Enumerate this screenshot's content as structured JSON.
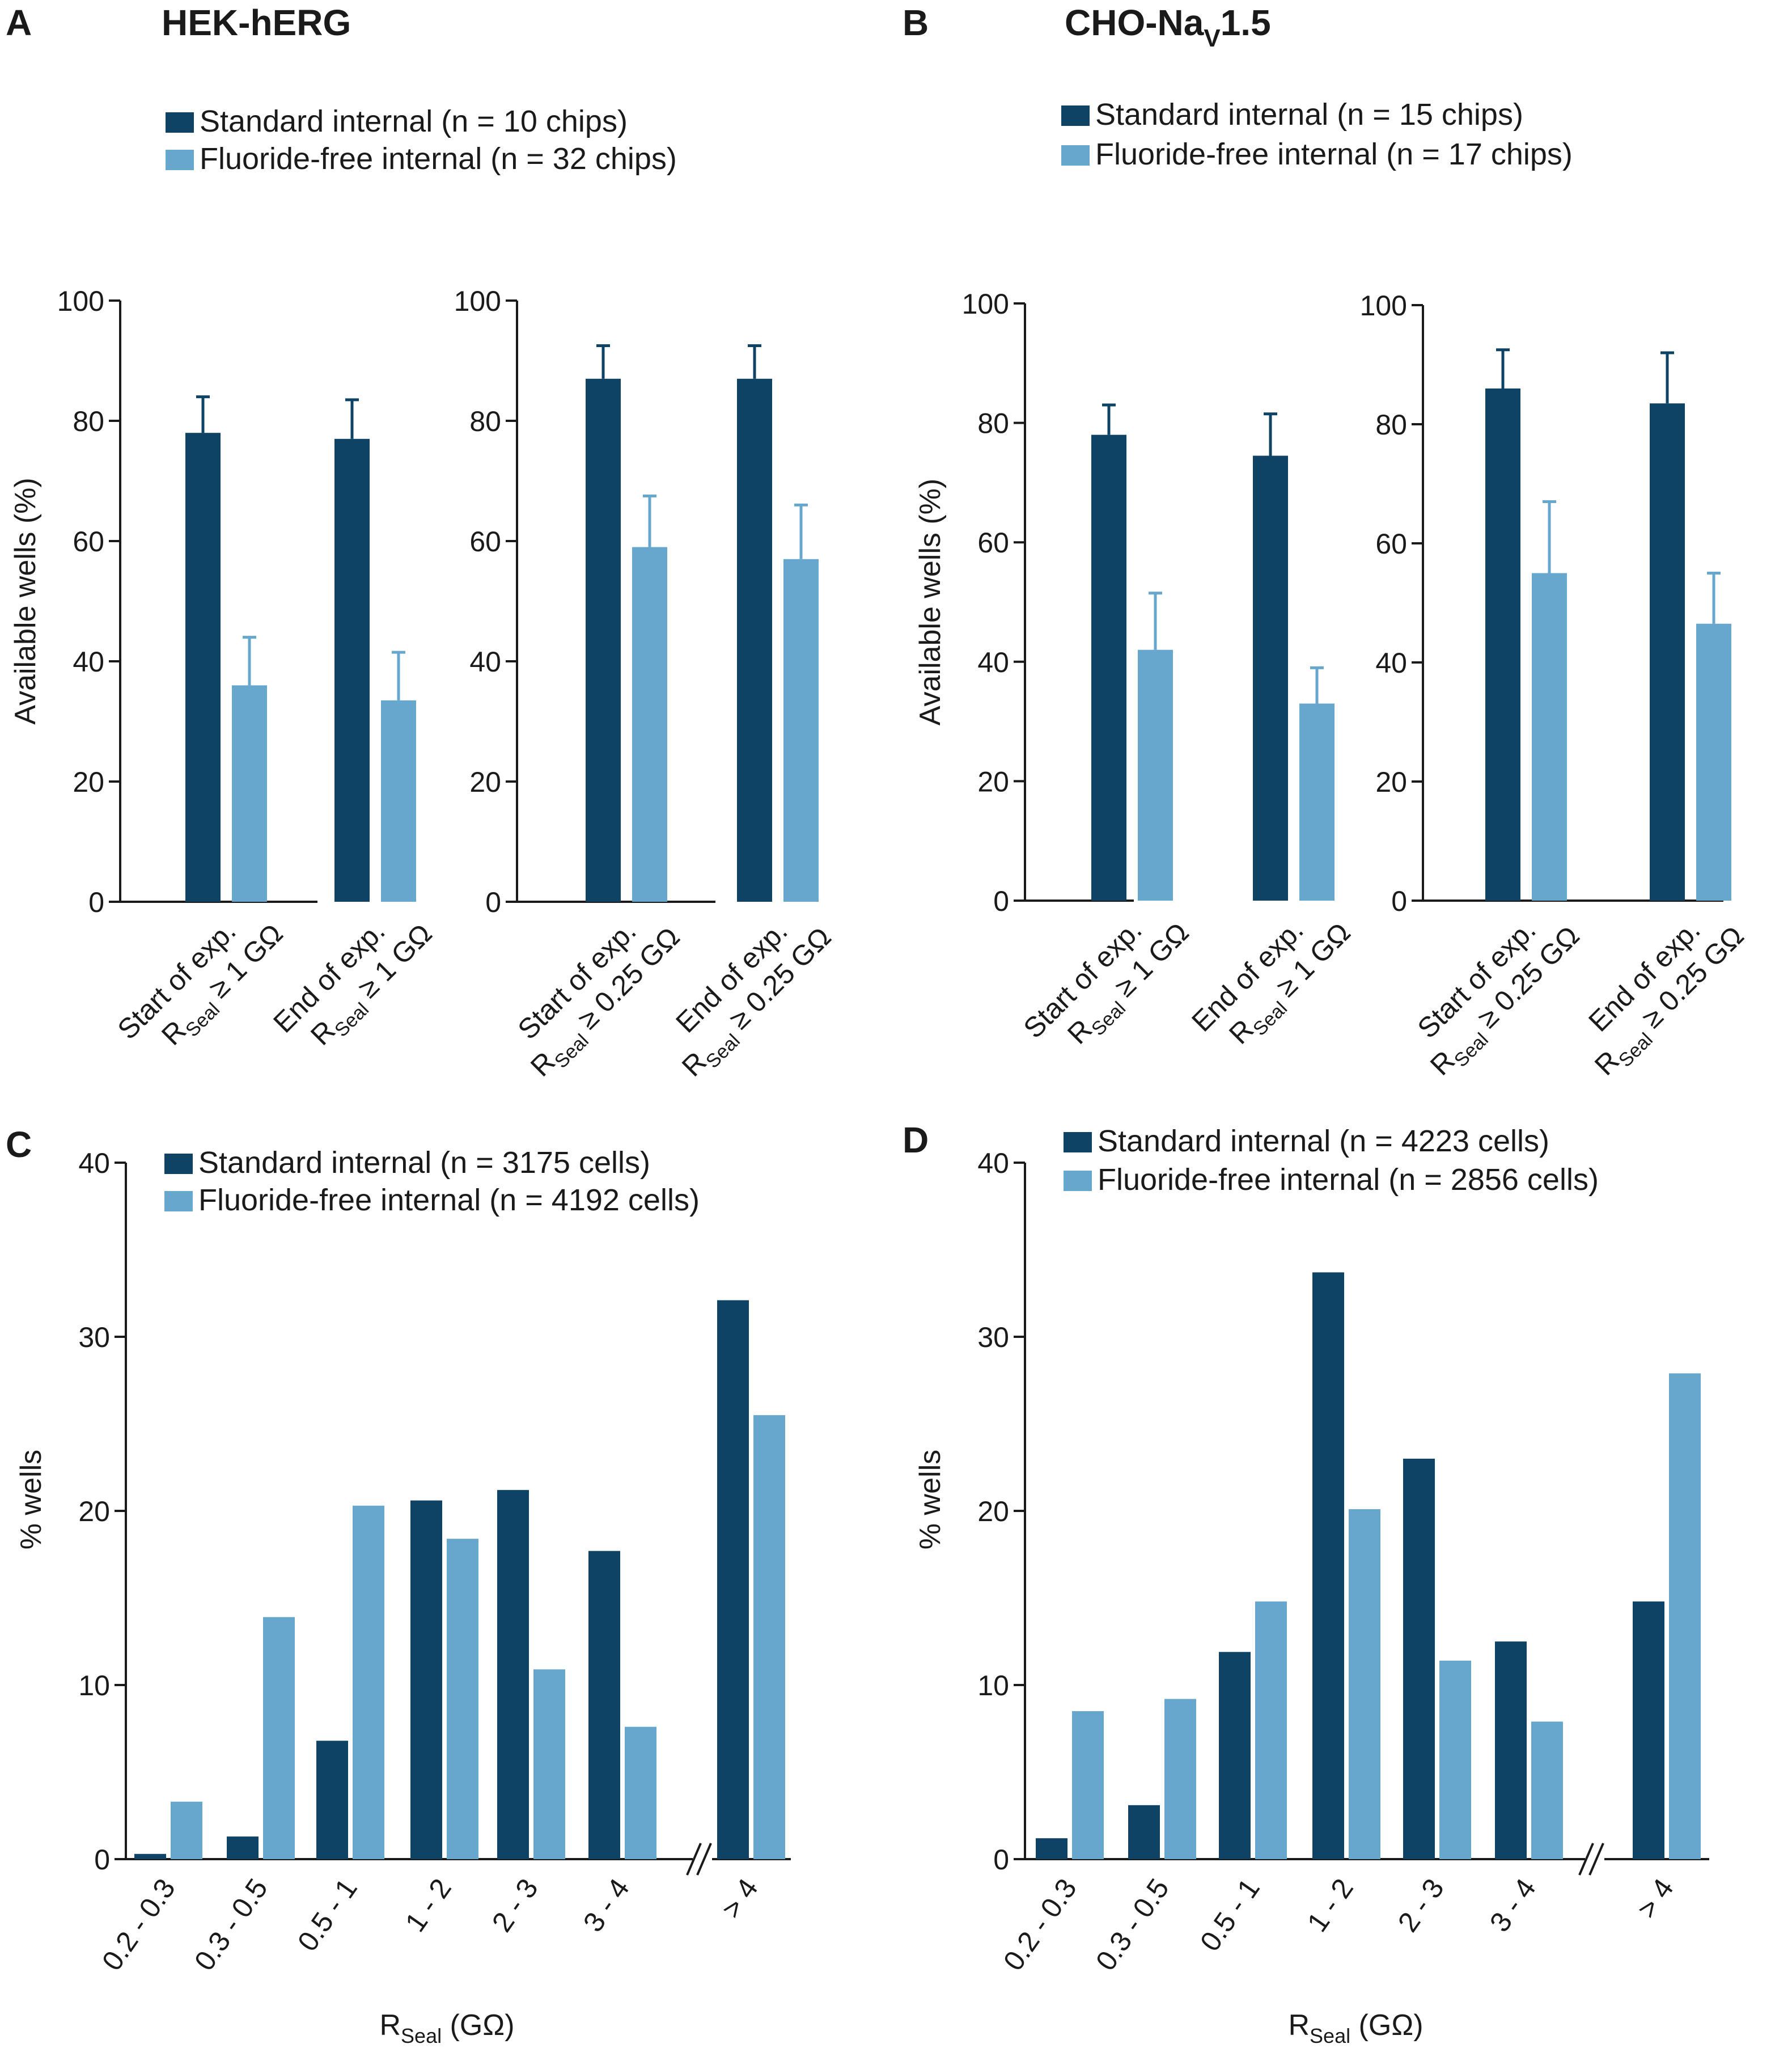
{
  "colors": {
    "standard": "#0e4365",
    "fluoride_free": "#67a6cd",
    "text": "#1a1a1a"
  },
  "panels": {
    "A": {
      "letter": "A",
      "title": "HEK-hERG",
      "legend": [
        "Standard internal (n = 10 chips)",
        "Fluoride-free internal (n = 32 chips)"
      ]
    },
    "B": {
      "letter": "B",
      "title_main": "CHO-Na",
      "title_sub": "V",
      "title_tail": "1.5",
      "legend": [
        "Standard internal (n = 15 chips)",
        "Fluoride-free internal (n = 17 chips)"
      ]
    },
    "C": {
      "letter": "C",
      "legend": [
        "Standard internal (n = 3175 cells)",
        "Fluoride-free internal (n = 4192 cells)"
      ]
    },
    "D": {
      "letter": "D",
      "legend": [
        "Standard internal (n = 4223 cells)",
        "Fluoride-free internal (n = 2856 cells)"
      ]
    }
  },
  "chart_data": [
    {
      "id": "A1",
      "type": "bar",
      "panel": "A",
      "ylabel": "Available wells (%)",
      "ylim": [
        0,
        100
      ],
      "yticks": [
        0,
        20,
        40,
        60,
        80,
        100
      ],
      "categories": [
        {
          "line1": "Start of exp.",
          "line2_r": "R",
          "line2_sub": "Seal",
          "line2_rest": " ≥ 1 GΩ"
        },
        {
          "line1": "End of exp.",
          "line2_r": "R",
          "line2_sub": "Seal",
          "line2_rest": " ≥ 1 GΩ"
        }
      ],
      "series": [
        {
          "name": "Standard internal",
          "values": [
            78,
            77
          ],
          "errors": [
            6,
            6.5
          ]
        },
        {
          "name": "Fluoride-free internal",
          "values": [
            36,
            33.5
          ],
          "errors": [
            8,
            8
          ]
        }
      ]
    },
    {
      "id": "A2",
      "type": "bar",
      "panel": "A",
      "ylabel": "",
      "ylim": [
        0,
        100
      ],
      "yticks": [
        0,
        20,
        40,
        60,
        80,
        100
      ],
      "categories": [
        {
          "line1": "Start of exp.",
          "line2_r": "R",
          "line2_sub": "Seal",
          "line2_rest": " ≥ 0.25 GΩ"
        },
        {
          "line1": "End of exp.",
          "line2_r": "R",
          "line2_sub": "Seal",
          "line2_rest": " ≥ 0.25 GΩ"
        }
      ],
      "series": [
        {
          "name": "Standard internal",
          "values": [
            87,
            87
          ],
          "errors": [
            5.5,
            5.5
          ]
        },
        {
          "name": "Fluoride-free internal",
          "values": [
            59,
            57
          ],
          "errors": [
            8.5,
            9
          ]
        }
      ]
    },
    {
      "id": "B1",
      "type": "bar",
      "panel": "B",
      "ylabel": "Available wells (%)",
      "ylim": [
        0,
        100
      ],
      "yticks": [
        0,
        20,
        40,
        60,
        80,
        100
      ],
      "categories": [
        {
          "line1": "Start of exp.",
          "line2_r": "R",
          "line2_sub": "Seal",
          "line2_rest": " ≥ 1 GΩ"
        },
        {
          "line1": "End of exp.",
          "line2_r": "R",
          "line2_sub": "Seal",
          "line2_rest": " ≥ 1 GΩ"
        }
      ],
      "series": [
        {
          "name": "Standard internal",
          "values": [
            78,
            74.5
          ],
          "errors": [
            5,
            7
          ]
        },
        {
          "name": "Fluoride-free internal",
          "values": [
            42,
            33
          ],
          "errors": [
            9.5,
            6
          ]
        }
      ]
    },
    {
      "id": "B2",
      "type": "bar",
      "panel": "B",
      "ylabel": "",
      "ylim": [
        0,
        100
      ],
      "yticks": [
        0,
        20,
        40,
        60,
        80,
        100
      ],
      "categories": [
        {
          "line1": "Start of exp.",
          "line2_r": "R",
          "line2_sub": "Seal",
          "line2_rest": " ≥ 0.25 GΩ"
        },
        {
          "line1": "End of exp.",
          "line2_r": "R",
          "line2_sub": "Seal",
          "line2_rest": " ≥ 0.25 GΩ"
        }
      ],
      "series": [
        {
          "name": "Standard internal",
          "values": [
            86,
            83.5
          ],
          "errors": [
            6.5,
            8.5
          ]
        },
        {
          "name": "Fluoride-free internal",
          "values": [
            55,
            46.5
          ],
          "errors": [
            12,
            8.5
          ]
        }
      ]
    },
    {
      "id": "C",
      "type": "bar",
      "panel": "C",
      "ylabel": "% wells",
      "xlabel_r": "R",
      "xlabel_sub": "Seal",
      "xlabel_rest": " (GΩ)",
      "ylim": [
        0,
        40
      ],
      "yticks": [
        0,
        10,
        20,
        30,
        40
      ],
      "categories": [
        "0.2 - 0.3",
        "0.3 - 0.5",
        "0.5 - 1",
        "1 - 2",
        "2 - 3",
        "3 - 4",
        "> 4"
      ],
      "axis_break_after": "3 - 4",
      "series": [
        {
          "name": "Standard internal",
          "values": [
            0.3,
            1.3,
            6.8,
            20.6,
            21.2,
            17.7,
            32.1
          ]
        },
        {
          "name": "Fluoride-free internal",
          "values": [
            3.3,
            13.9,
            20.3,
            18.4,
            10.9,
            7.6,
            25.5
          ]
        }
      ]
    },
    {
      "id": "D",
      "type": "bar",
      "panel": "D",
      "ylabel": "% wells",
      "xlabel_r": "R",
      "xlabel_sub": "Seal",
      "xlabel_rest": " (GΩ)",
      "ylim": [
        0,
        40
      ],
      "yticks": [
        0,
        10,
        20,
        30,
        40
      ],
      "categories": [
        "0.2 - 0.3",
        "0.3 - 0.5",
        "0.5 - 1",
        "1 - 2",
        "2 - 3",
        "3 - 4",
        "> 4"
      ],
      "axis_break_after": "3 - 4",
      "series": [
        {
          "name": "Standard internal",
          "values": [
            1.2,
            3.1,
            11.9,
            33.7,
            23.0,
            12.5,
            14.8
          ]
        },
        {
          "name": "Fluoride-free internal",
          "values": [
            8.5,
            9.2,
            14.8,
            20.1,
            11.4,
            7.9,
            27.9
          ]
        }
      ]
    }
  ]
}
